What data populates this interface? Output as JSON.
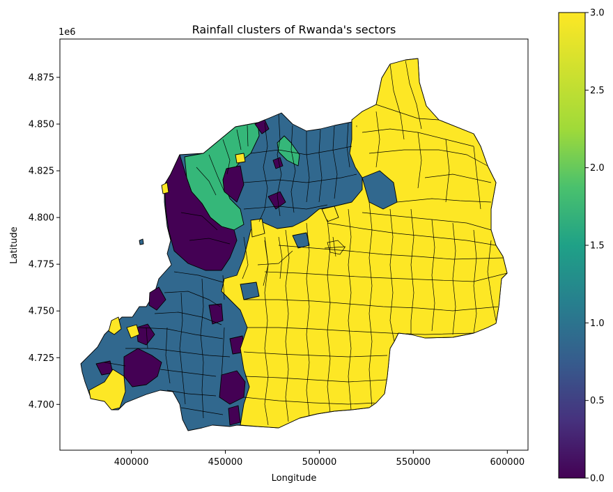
{
  "chart_data": {
    "type": "choropleth",
    "title": "Rainfall clusters of Rwanda's sectors",
    "xlabel": "Longitude",
    "ylabel": "Latitude",
    "y_offset_label": "1e6",
    "xlim": [
      362000,
      611000
    ],
    "ylim": [
      4.6755,
      4.8955
    ],
    "x_ticks": [
      {
        "value": 400000,
        "label": "400000"
      },
      {
        "value": 450000,
        "label": "450000"
      },
      {
        "value": 500000,
        "label": "500000"
      },
      {
        "value": 550000,
        "label": "550000"
      },
      {
        "value": 600000,
        "label": "600000"
      }
    ],
    "y_ticks": [
      {
        "value": 4.7,
        "label": "4.700"
      },
      {
        "value": 4.725,
        "label": "4.725"
      },
      {
        "value": 4.75,
        "label": "4.750"
      },
      {
        "value": 4.775,
        "label": "4.775"
      },
      {
        "value": 4.8,
        "label": "4.800"
      },
      {
        "value": 4.825,
        "label": "4.825"
      },
      {
        "value": 4.85,
        "label": "4.850"
      },
      {
        "value": 4.875,
        "label": "4.875"
      }
    ],
    "colorbar": {
      "cmap": "viridis",
      "range": [
        0.0,
        3.0
      ],
      "ticks": [
        {
          "value": 0.0,
          "label": "0.0"
        },
        {
          "value": 0.5,
          "label": "0.5"
        },
        {
          "value": 1.0,
          "label": "1.0"
        },
        {
          "value": 1.5,
          "label": "1.5"
        },
        {
          "value": 2.0,
          "label": "2.0"
        },
        {
          "value": 2.5,
          "label": "2.5"
        },
        {
          "value": 3.0,
          "label": "3.0"
        }
      ]
    },
    "cluster_colors": {
      "0": "#440154",
      "1": "#31688e",
      "2": "#35b779",
      "3": "#fde725"
    }
  }
}
